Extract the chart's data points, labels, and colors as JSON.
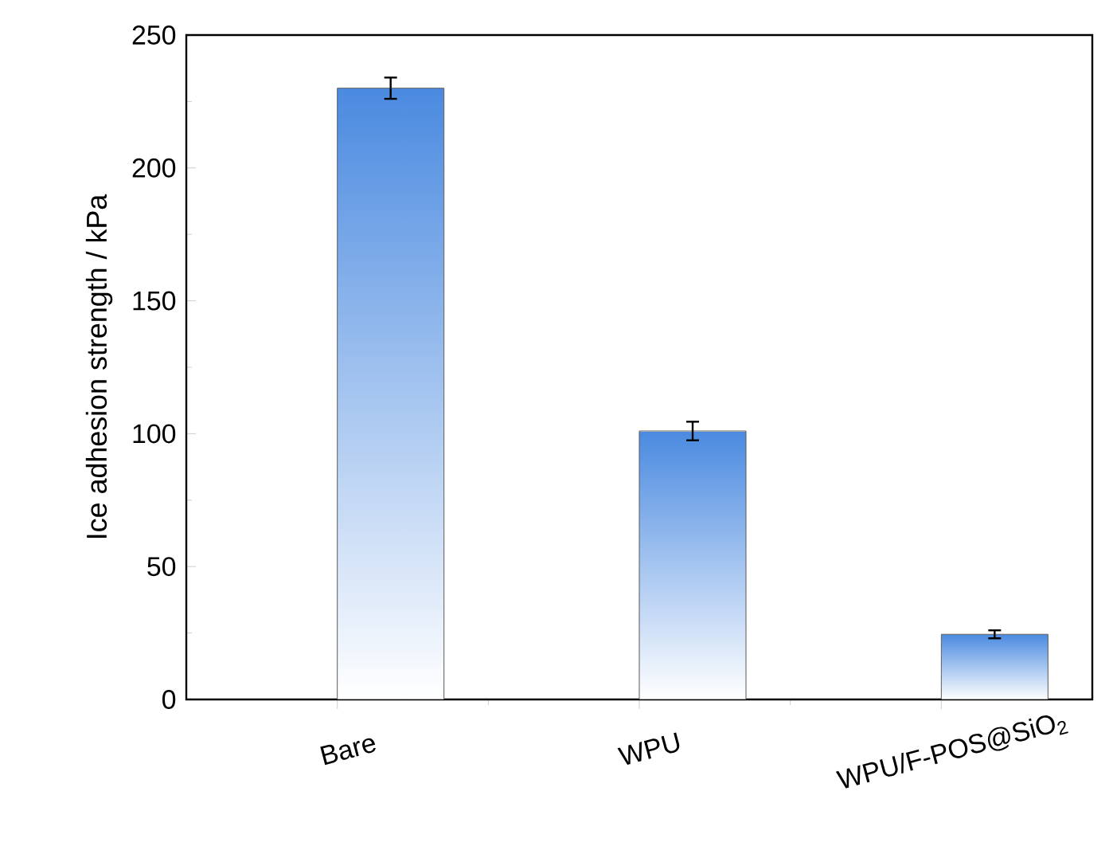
{
  "chart_data": {
    "type": "bar",
    "ylabel": "Ice adhesion strength / kPa",
    "categories": [
      "Bare",
      "WPU",
      "WPU/F-POS@SiO$_{2}$"
    ],
    "values": [
      230,
      101,
      24.5
    ],
    "errors": [
      4,
      3.5,
      1.5
    ],
    "color": "#4a8ae0",
    "ylim": [
      0,
      250
    ],
    "yticks": [
      0,
      50,
      100,
      150,
      200,
      250
    ],
    "grid": false
  }
}
